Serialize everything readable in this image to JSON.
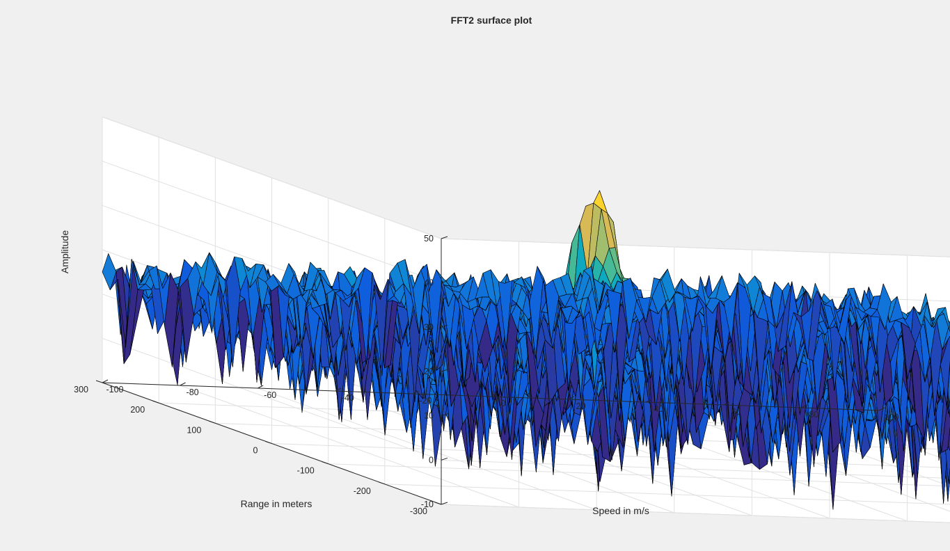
{
  "figure": {
    "background_color": "#f0f0f0",
    "axes_background_color": "#ffffff",
    "grid_color": "#e0e0e0",
    "axis_color": "#262626"
  },
  "chart_data": {
    "type": "surface",
    "title": "FFT2 surface plot",
    "xlabel": "Speed in m/s",
    "ylabel": "Range in meters",
    "zlabel": "Amplitude",
    "xlim": [
      -100,
      100
    ],
    "ylim": [
      -300,
      300
    ],
    "zlim": [
      -10,
      50
    ],
    "x_ticks": [
      "-100",
      "-80",
      "-60",
      "-40",
      "-20",
      "0",
      "20",
      "40",
      "60",
      "80",
      "100"
    ],
    "y_ticks": [
      "-300",
      "-200",
      "-100",
      "0",
      "100",
      "200",
      "300"
    ],
    "z_ticks": [
      "-10",
      "0",
      "10",
      "20",
      "30",
      "40",
      "50"
    ],
    "x_tick_values": [
      -100,
      -80,
      -60,
      -40,
      -20,
      0,
      20,
      40,
      60,
      80,
      100
    ],
    "y_tick_values": [
      -300,
      -200,
      -100,
      0,
      100,
      200,
      300
    ],
    "z_tick_values": [
      -10,
      0,
      10,
      20,
      30,
      40,
      50
    ],
    "grid": true,
    "colormap": "parula",
    "edge_color": "#000000",
    "noise_floor_level": 15,
    "noise_min_approx": -10,
    "peak": {
      "speed": 0,
      "range": 110,
      "amplitude": 46
    }
  }
}
